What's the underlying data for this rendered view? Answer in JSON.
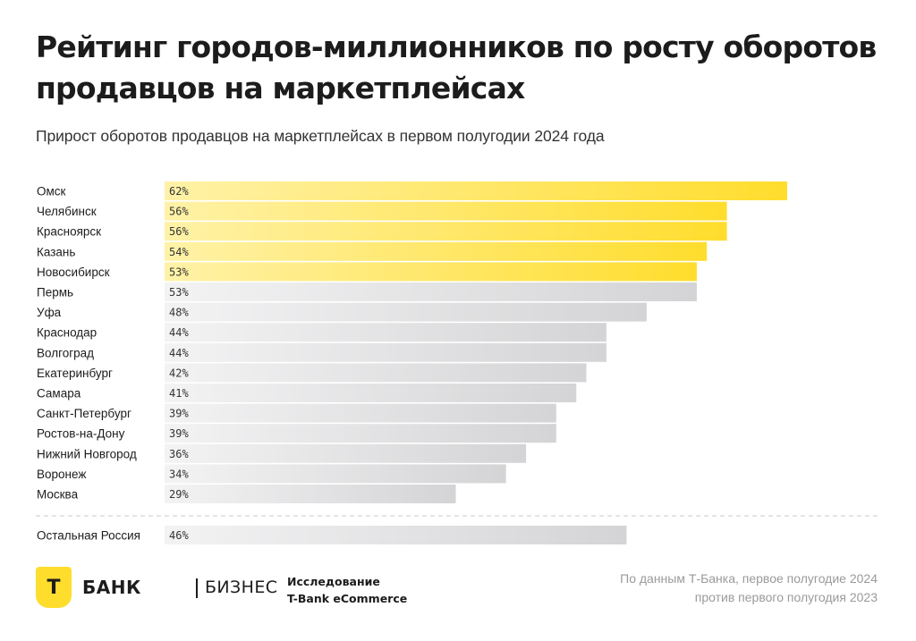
{
  "header": {
    "title": "Рейтинг городов-миллионников по росту оборотов продавцов на маркетплейсах",
    "subtitle": "Прирост оборотов продавцов на маркетплейсах в первом полугодии 2024 года"
  },
  "chart_data": {
    "type": "bar",
    "orientation": "horizontal",
    "categories": [
      "Омск",
      "Челябинск",
      "Красноярск",
      "Казань",
      "Новосибирск",
      "Пермь",
      "Уфа",
      "Краснодар",
      "Волгоград",
      "Екатеринбург",
      "Самара",
      "Санкт-Петербург",
      "Ростов-на-Дону",
      "Нижний Новгород",
      "Воронеж",
      "Москва"
    ],
    "values": [
      62,
      56,
      56,
      54,
      53,
      53,
      48,
      44,
      44,
      42,
      41,
      39,
      39,
      36,
      34,
      29
    ],
    "value_labels": [
      "62%",
      "56%",
      "56%",
      "54%",
      "53%",
      "53%",
      "48%",
      "44%",
      "44%",
      "42%",
      "41%",
      "39%",
      "39%",
      "36%",
      "34%",
      "29%"
    ],
    "highlighted_top": 5,
    "highlight_color": "#ffdd2d",
    "base_color": "#d4d4d6",
    "reference": {
      "category": "Остальная Россия",
      "value": 46,
      "value_label": "46%"
    },
    "xlim": [
      0,
      62
    ]
  },
  "footer": {
    "logo": {
      "mark": "Т",
      "bank": "БАНК",
      "business": "БИЗНЕС"
    },
    "research": {
      "line1": "Исследование",
      "line2": "T-Bank eCommerce"
    },
    "source": {
      "line1": "По данным Т-Банка, первое полугодие 2024",
      "line2": "против первого полугодия 2023"
    }
  }
}
